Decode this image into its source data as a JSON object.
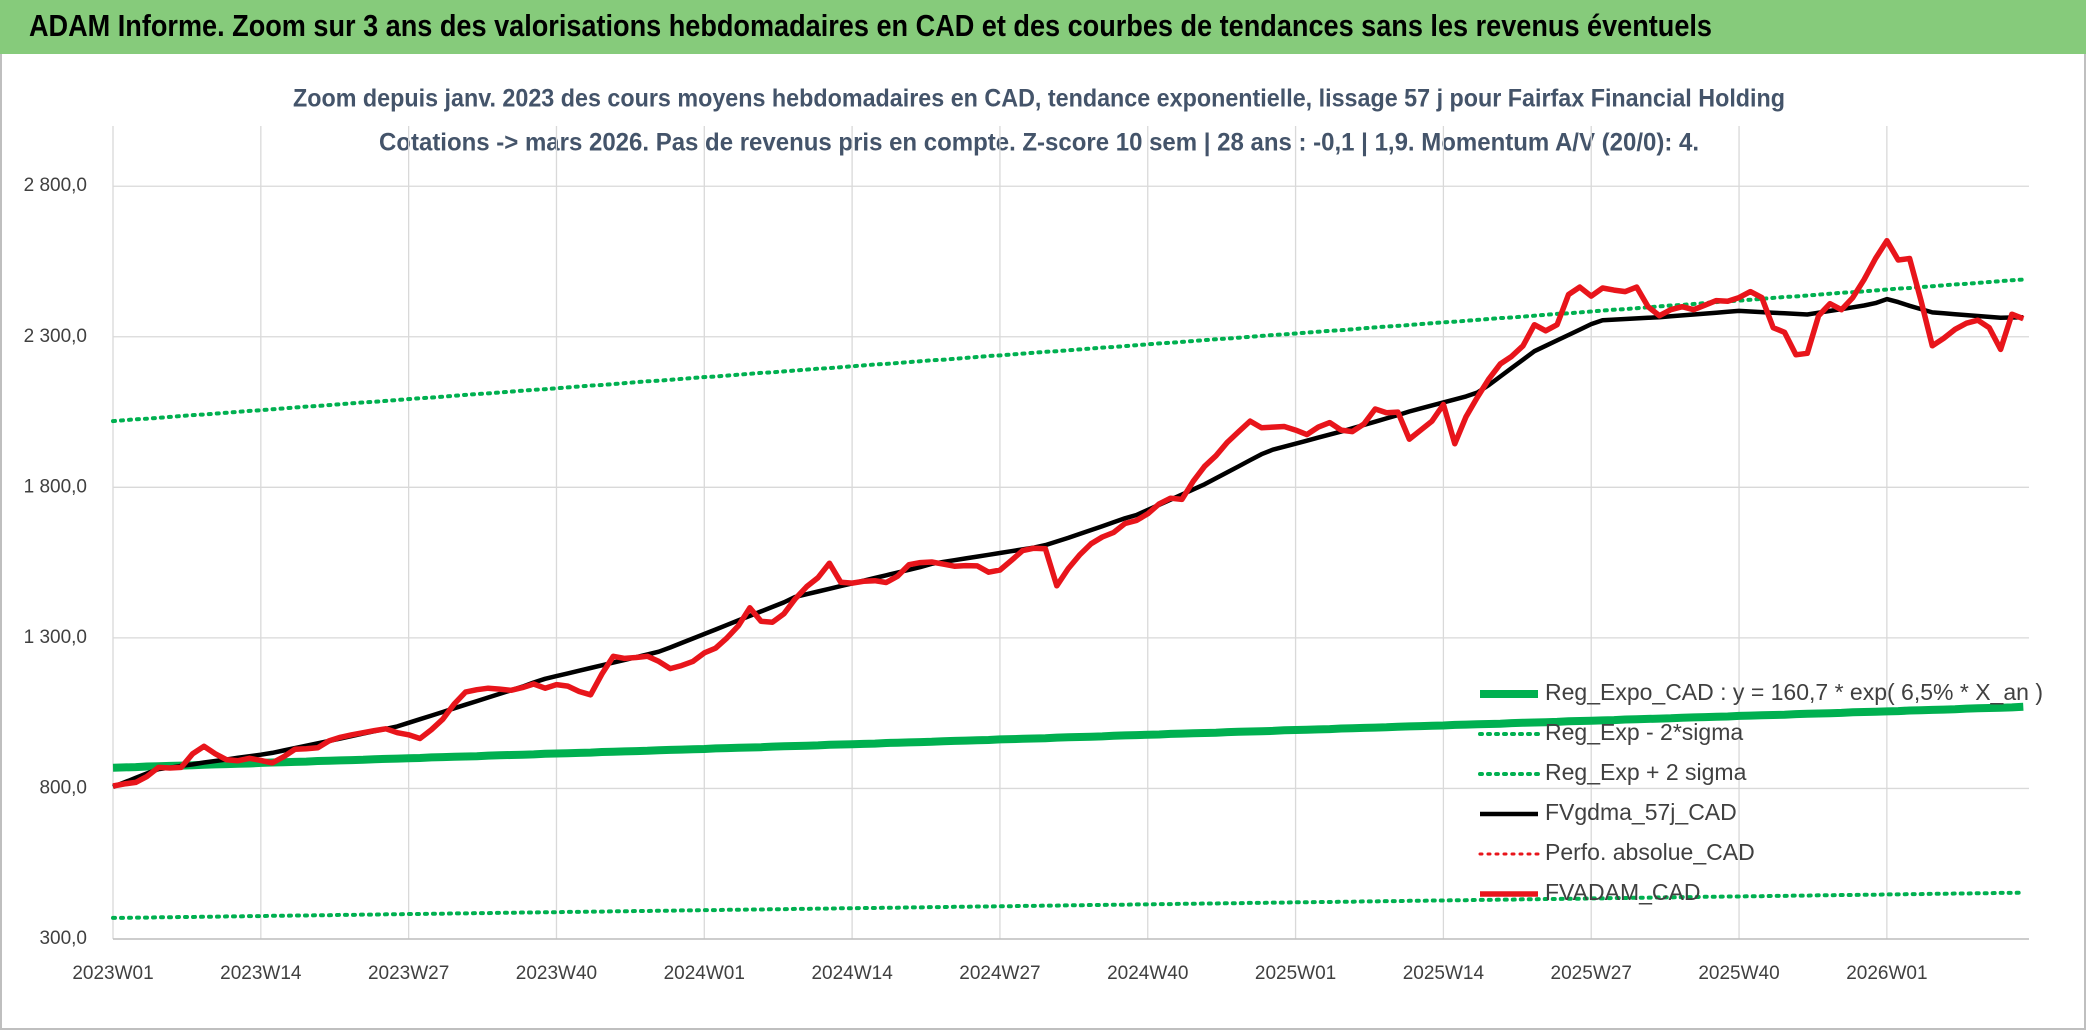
{
  "chart_data": {
    "type": "line",
    "title": "ADAM Informe. Zoom sur 3 ans des valorisations hebdomadaires en CAD et des courbes de tendances sans les revenus éventuels",
    "subtitle": [
      "Zoom depuis janv. 2023 des cours moyens hebdomadaires en CAD, tendance exponentielle, lissage 57 j pour Fairfax Financial Holding",
      "Cotations -> mars 2026. Pas de revenus pris en compte. Z-score 10 sem | 28 ans : -0,1 | 1,9. Momentum A/V (20/0): 4."
    ],
    "categories": [
      "2023W01",
      null,
      null,
      null,
      null,
      null,
      null,
      null,
      null,
      null,
      null,
      null,
      null,
      "2023W14",
      null,
      null,
      null,
      null,
      null,
      null,
      null,
      null,
      null,
      null,
      null,
      null,
      "2023W27",
      null,
      null,
      null,
      null,
      null,
      null,
      null,
      null,
      null,
      null,
      null,
      null,
      "2023W40",
      null,
      null,
      null,
      null,
      null,
      null,
      null,
      null,
      null,
      null,
      null,
      null,
      "2024W01",
      null,
      null,
      null,
      null,
      null,
      null,
      null,
      null,
      null,
      null,
      null,
      null,
      "2024W14",
      null,
      null,
      null,
      null,
      null,
      null,
      null,
      null,
      null,
      null,
      null,
      null,
      "2024W27",
      null,
      null,
      null,
      null,
      null,
      null,
      null,
      null,
      null,
      null,
      null,
      null,
      "2024W40",
      null,
      null,
      null,
      null,
      null,
      null,
      null,
      null,
      null,
      null,
      null,
      null,
      "2025W01",
      null,
      null,
      null,
      null,
      null,
      null,
      null,
      null,
      null,
      null,
      null,
      null,
      "2025W14",
      null,
      null,
      null,
      null,
      null,
      null,
      null,
      null,
      null,
      null,
      null,
      null,
      "2025W27",
      null,
      null,
      null,
      null,
      null,
      null,
      null,
      null,
      null,
      null,
      null,
      null,
      "2025W40",
      null,
      null,
      null,
      null,
      null,
      null,
      null,
      null,
      null,
      null,
      null,
      null,
      "2026W01",
      null,
      null,
      null,
      null,
      null,
      null,
      null,
      null,
      null,
      null,
      null,
      null
    ],
    "series": [
      {
        "name": "Reg_Expo_CAD : y = 160,7 * exp( 6,5% * X_an )",
        "color": "#00b050",
        "style": "solid",
        "values": [
          869,
          870,
          871,
          873,
          874,
          875,
          876,
          877,
          879,
          880,
          881,
          882,
          883,
          885,
          886,
          887,
          888,
          889,
          891,
          892,
          893,
          894,
          895,
          897,
          898,
          899,
          900,
          901,
          903,
          904,
          905,
          906,
          907,
          909,
          910,
          911,
          912,
          913,
          915,
          916,
          917,
          918,
          919,
          921,
          922,
          923,
          924,
          925,
          927,
          928,
          929,
          930,
          931,
          933,
          934,
          935,
          936,
          937,
          939,
          940,
          941,
          942,
          943,
          945,
          946,
          947,
          948,
          949,
          951,
          952,
          953,
          954,
          955,
          957,
          958,
          959,
          960,
          961,
          963,
          964,
          965,
          966,
          967,
          969,
          970,
          971,
          972,
          973,
          975,
          976,
          977,
          978,
          979,
          981,
          982,
          983,
          984,
          985,
          987,
          988,
          989,
          990,
          991,
          993,
          994,
          995,
          996,
          997,
          999,
          1000,
          1001,
          1002,
          1003,
          1005,
          1006,
          1007,
          1008,
          1009,
          1011,
          1012,
          1013,
          1014,
          1015,
          1017,
          1018,
          1019,
          1020,
          1021,
          1023,
          1024,
          1025,
          1026,
          1027,
          1029,
          1030,
          1031,
          1032,
          1033,
          1035,
          1036,
          1037,
          1038,
          1039,
          1041,
          1042,
          1043,
          1044,
          1045,
          1047,
          1048,
          1049,
          1050,
          1051,
          1053,
          1054,
          1055,
          1056,
          1057,
          1059,
          1060,
          1061,
          1062,
          1063,
          1065,
          1066,
          1067,
          1068,
          1069,
          1071
        ]
      },
      {
        "name": "Reg_Exp - 2*sigma",
        "color": "#00b050",
        "style": "dotted",
        "values": [
          370,
          370,
          371,
          371,
          372,
          372,
          373,
          373,
          374,
          374,
          375,
          375,
          376,
          376,
          377,
          377,
          378,
          378,
          379,
          379,
          380,
          380,
          381,
          381,
          382,
          382,
          383,
          383,
          384,
          384,
          385,
          385,
          386,
          386,
          387,
          387,
          388,
          388,
          389,
          389,
          390,
          390,
          391,
          391,
          392,
          392,
          393,
          393,
          394,
          394,
          395,
          395,
          396,
          396,
          397,
          397,
          398,
          398,
          399,
          399,
          400,
          400,
          401,
          401,
          402,
          402,
          403,
          403,
          404,
          404,
          405,
          405,
          406,
          406,
          407,
          407,
          408,
          408,
          409,
          409,
          410,
          410,
          411,
          411,
          412,
          412,
          413,
          413,
          414,
          414,
          415,
          415,
          416,
          416,
          417,
          417,
          418,
          418,
          419,
          419,
          420,
          420,
          421,
          421,
          422,
          422,
          423,
          423,
          424,
          424,
          425,
          425,
          426,
          426,
          427,
          427,
          428,
          428,
          429,
          429,
          430,
          430,
          431,
          431,
          432,
          432,
          433,
          433,
          434,
          434,
          435,
          435,
          436,
          436,
          437,
          437,
          438,
          438,
          439,
          439,
          440,
          440,
          441,
          441,
          442,
          442,
          443,
          443,
          444,
          444,
          445,
          445,
          446,
          446,
          447,
          447,
          448,
          448,
          449,
          449,
          450,
          450,
          451,
          451,
          452,
          452,
          453,
          453,
          454
        ]
      },
      {
        "name": "Reg_Exp + 2 sigma",
        "color": "#00b050",
        "style": "dotted",
        "values": [
          2020,
          2023,
          2026,
          2028,
          2031,
          2034,
          2037,
          2040,
          2042,
          2045,
          2048,
          2051,
          2054,
          2056,
          2059,
          2062,
          2065,
          2068,
          2070,
          2073,
          2076,
          2079,
          2082,
          2084,
          2087,
          2090,
          2093,
          2096,
          2098,
          2101,
          2104,
          2107,
          2110,
          2112,
          2115,
          2118,
          2121,
          2124,
          2126,
          2129,
          2132,
          2135,
          2138,
          2140,
          2143,
          2146,
          2149,
          2152,
          2154,
          2157,
          2160,
          2163,
          2166,
          2168,
          2171,
          2174,
          2177,
          2180,
          2182,
          2185,
          2188,
          2191,
          2194,
          2196,
          2199,
          2202,
          2205,
          2208,
          2210,
          2213,
          2216,
          2219,
          2222,
          2224,
          2227,
          2230,
          2233,
          2236,
          2238,
          2241,
          2244,
          2247,
          2250,
          2252,
          2255,
          2258,
          2261,
          2264,
          2266,
          2269,
          2272,
          2275,
          2278,
          2280,
          2283,
          2286,
          2289,
          2292,
          2294,
          2297,
          2300,
          2303,
          2306,
          2308,
          2311,
          2314,
          2317,
          2320,
          2322,
          2325,
          2328,
          2331,
          2334,
          2336,
          2339,
          2342,
          2345,
          2348,
          2350,
          2353,
          2356,
          2359,
          2362,
          2364,
          2367,
          2370,
          2373,
          2376,
          2378,
          2381,
          2384,
          2387,
          2390,
          2392,
          2395,
          2398,
          2401,
          2404,
          2406,
          2409,
          2412,
          2415,
          2418,
          2420,
          2423,
          2426,
          2429,
          2432,
          2434,
          2437,
          2440,
          2443,
          2446,
          2448,
          2451,
          2454,
          2457,
          2460,
          2462,
          2465,
          2468,
          2471,
          2474,
          2476,
          2479,
          2482,
          2485,
          2488,
          2490
        ]
      },
      {
        "name": "FVgdma_57j_CAD",
        "color": "#000000",
        "style": "solid",
        "values": [
          805,
          820,
          835,
          850,
          864,
          869,
          875,
          880,
          886,
          891,
          896,
          902,
          907,
          912,
          918,
          926,
          934,
          942,
          950,
          958,
          966,
          974,
          982,
          990,
          998,
          1006,
          1018,
          1030,
          1042,
          1054,
          1066,
          1078,
          1090,
          1102,
          1114,
          1126,
          1138,
          1152,
          1164,
          1173,
          1182,
          1191,
          1200,
          1209,
          1218,
          1227,
          1236,
          1245,
          1254,
          1268,
          1283,
          1298,
          1313,
          1328,
          1343,
          1358,
          1373,
          1388,
          1403,
          1418,
          1436,
          1445,
          1454,
          1463,
          1472,
          1481,
          1490,
          1499,
          1508,
          1517,
          1526,
          1535,
          1546,
          1552,
          1558,
          1564,
          1570,
          1576,
          1582,
          1588,
          1594,
          1600,
          1608,
          1620,
          1632,
          1645,
          1658,
          1671,
          1684,
          1697,
          1708,
          1725,
          1742,
          1759,
          1776,
          1793,
          1810,
          1830,
          1850,
          1870,
          1890,
          1910,
          1925,
          1935,
          1945,
          1955,
          1965,
          1975,
          1985,
          1996,
          2007,
          2018,
          2029,
          2040,
          2052,
          2062,
          2072,
          2082,
          2092,
          2102,
          2115,
          2140,
          2168,
          2196,
          2224,
          2252,
          2270,
          2288,
          2306,
          2324,
          2342,
          2355,
          2357,
          2359,
          2361,
          2363,
          2365,
          2368,
          2371,
          2374,
          2377,
          2380,
          2383,
          2386,
          2384,
          2382,
          2380,
          2378,
          2376,
          2374,
          2380,
          2386,
          2392,
          2398,
          2404,
          2412,
          2425,
          2415,
          2403,
          2392,
          2381,
          2378,
          2375,
          2372,
          2369,
          2366,
          2363,
          2364,
          2365
        ]
      },
      {
        "name": "Perfo. absolue_CAD",
        "color": "#e8151b",
        "style": "dotted",
        "values": [
          null,
          null,
          null,
          null,
          null,
          null,
          null,
          null,
          null,
          null,
          null,
          null,
          null,
          null,
          null,
          null,
          null,
          null,
          null,
          null,
          null,
          null,
          null,
          null,
          null,
          null,
          null,
          null,
          null,
          null,
          null,
          null,
          null,
          null,
          null,
          null,
          null,
          null,
          null,
          null,
          null,
          null,
          null,
          null,
          null,
          null,
          null,
          null,
          null,
          null,
          null,
          null,
          null,
          null,
          null,
          null,
          null,
          null,
          null,
          null,
          null,
          null,
          null,
          null,
          null,
          null,
          null,
          null,
          null,
          null,
          null,
          null,
          null,
          null,
          null,
          null,
          null,
          null,
          null,
          null,
          null,
          null,
          null,
          null,
          null,
          null,
          null,
          null,
          null,
          null,
          null,
          null,
          null,
          null,
          null,
          null,
          null,
          null,
          null,
          null,
          null,
          null,
          null,
          null,
          null,
          null,
          null,
          null,
          null,
          null,
          null,
          null,
          null,
          null,
          null,
          null,
          null,
          null,
          null,
          null,
          null,
          null,
          null,
          null,
          null,
          null,
          null,
          null,
          null,
          null,
          null,
          null,
          null,
          null,
          null,
          null,
          null,
          null,
          null,
          null,
          null,
          null,
          null,
          null,
          null,
          null,
          null,
          null,
          null,
          null,
          null,
          null,
          null,
          null,
          null,
          null,
          null,
          null,
          null,
          null,
          null,
          null,
          null,
          null,
          null,
          null,
          null,
          null,
          null
        ]
      },
      {
        "name": "FVADAM_CAD",
        "color": "#e8151b",
        "style": "solid",
        "values": [
          808,
          815,
          820,
          840,
          870,
          868,
          870,
          915,
          940,
          915,
          895,
          892,
          900,
          893,
          885,
          905,
          930,
          932,
          935,
          958,
          970,
          978,
          985,
          992,
          998,
          985,
          978,
          966,
          995,
          1030,
          1080,
          1120,
          1128,
          1133,
          1130,
          1126,
          1135,
          1147,
          1133,
          1145,
          1140,
          1122,
          1111,
          1180,
          1239,
          1232,
          1235,
          1239,
          1222,
          1198,
          1208,
          1222,
          1250,
          1266,
          1300,
          1340,
          1400,
          1355,
          1352,
          1380,
          1430,
          1470,
          1500,
          1548,
          1485,
          1482,
          1488,
          1490,
          1484,
          1505,
          1543,
          1550,
          1552,
          1545,
          1538,
          1540,
          1539,
          1518,
          1525,
          1557,
          1590,
          1598,
          1596,
          1473,
          1530,
          1575,
          1612,
          1635,
          1650,
          1680,
          1690,
          1712,
          1745,
          1764,
          1760,
          1820,
          1870,
          1905,
          1950,
          1985,
          2020,
          1998,
          2000,
          2002,
          1990,
          1975,
          2000,
          2015,
          1990,
          1985,
          2010,
          2060,
          2048,
          2050,
          1960,
          1990,
          2020,
          2075,
          1945,
          2035,
          2100,
          2160,
          2210,
          2235,
          2270,
          2340,
          2320,
          2340,
          2440,
          2465,
          2435,
          2462,
          2455,
          2450,
          2465,
          2400,
          2370,
          2390,
          2400,
          2390,
          2405,
          2420,
          2418,
          2430,
          2450,
          2430,
          2330,
          2315,
          2240,
          2245,
          2370,
          2410,
          2390,
          2430,
          2490,
          2560,
          2619,
          2555,
          2560,
          2420,
          2270,
          2295,
          2325,
          2345,
          2355,
          2330,
          2258,
          2375,
          2360
        ]
      }
    ],
    "ylim": [
      300,
      3000
    ],
    "yticks": [
      {
        "value": 300,
        "label": "300,0"
      },
      {
        "value": 800,
        "label": "800,0"
      },
      {
        "value": 1300,
        "label": "1 300,0"
      },
      {
        "value": 1800,
        "label": "1 800,0"
      },
      {
        "value": 2300,
        "label": "2 300,0"
      },
      {
        "value": 2800,
        "label": "2 800,0"
      }
    ],
    "grid": true,
    "legend": "lower right",
    "header_color": "#86cb7b"
  }
}
